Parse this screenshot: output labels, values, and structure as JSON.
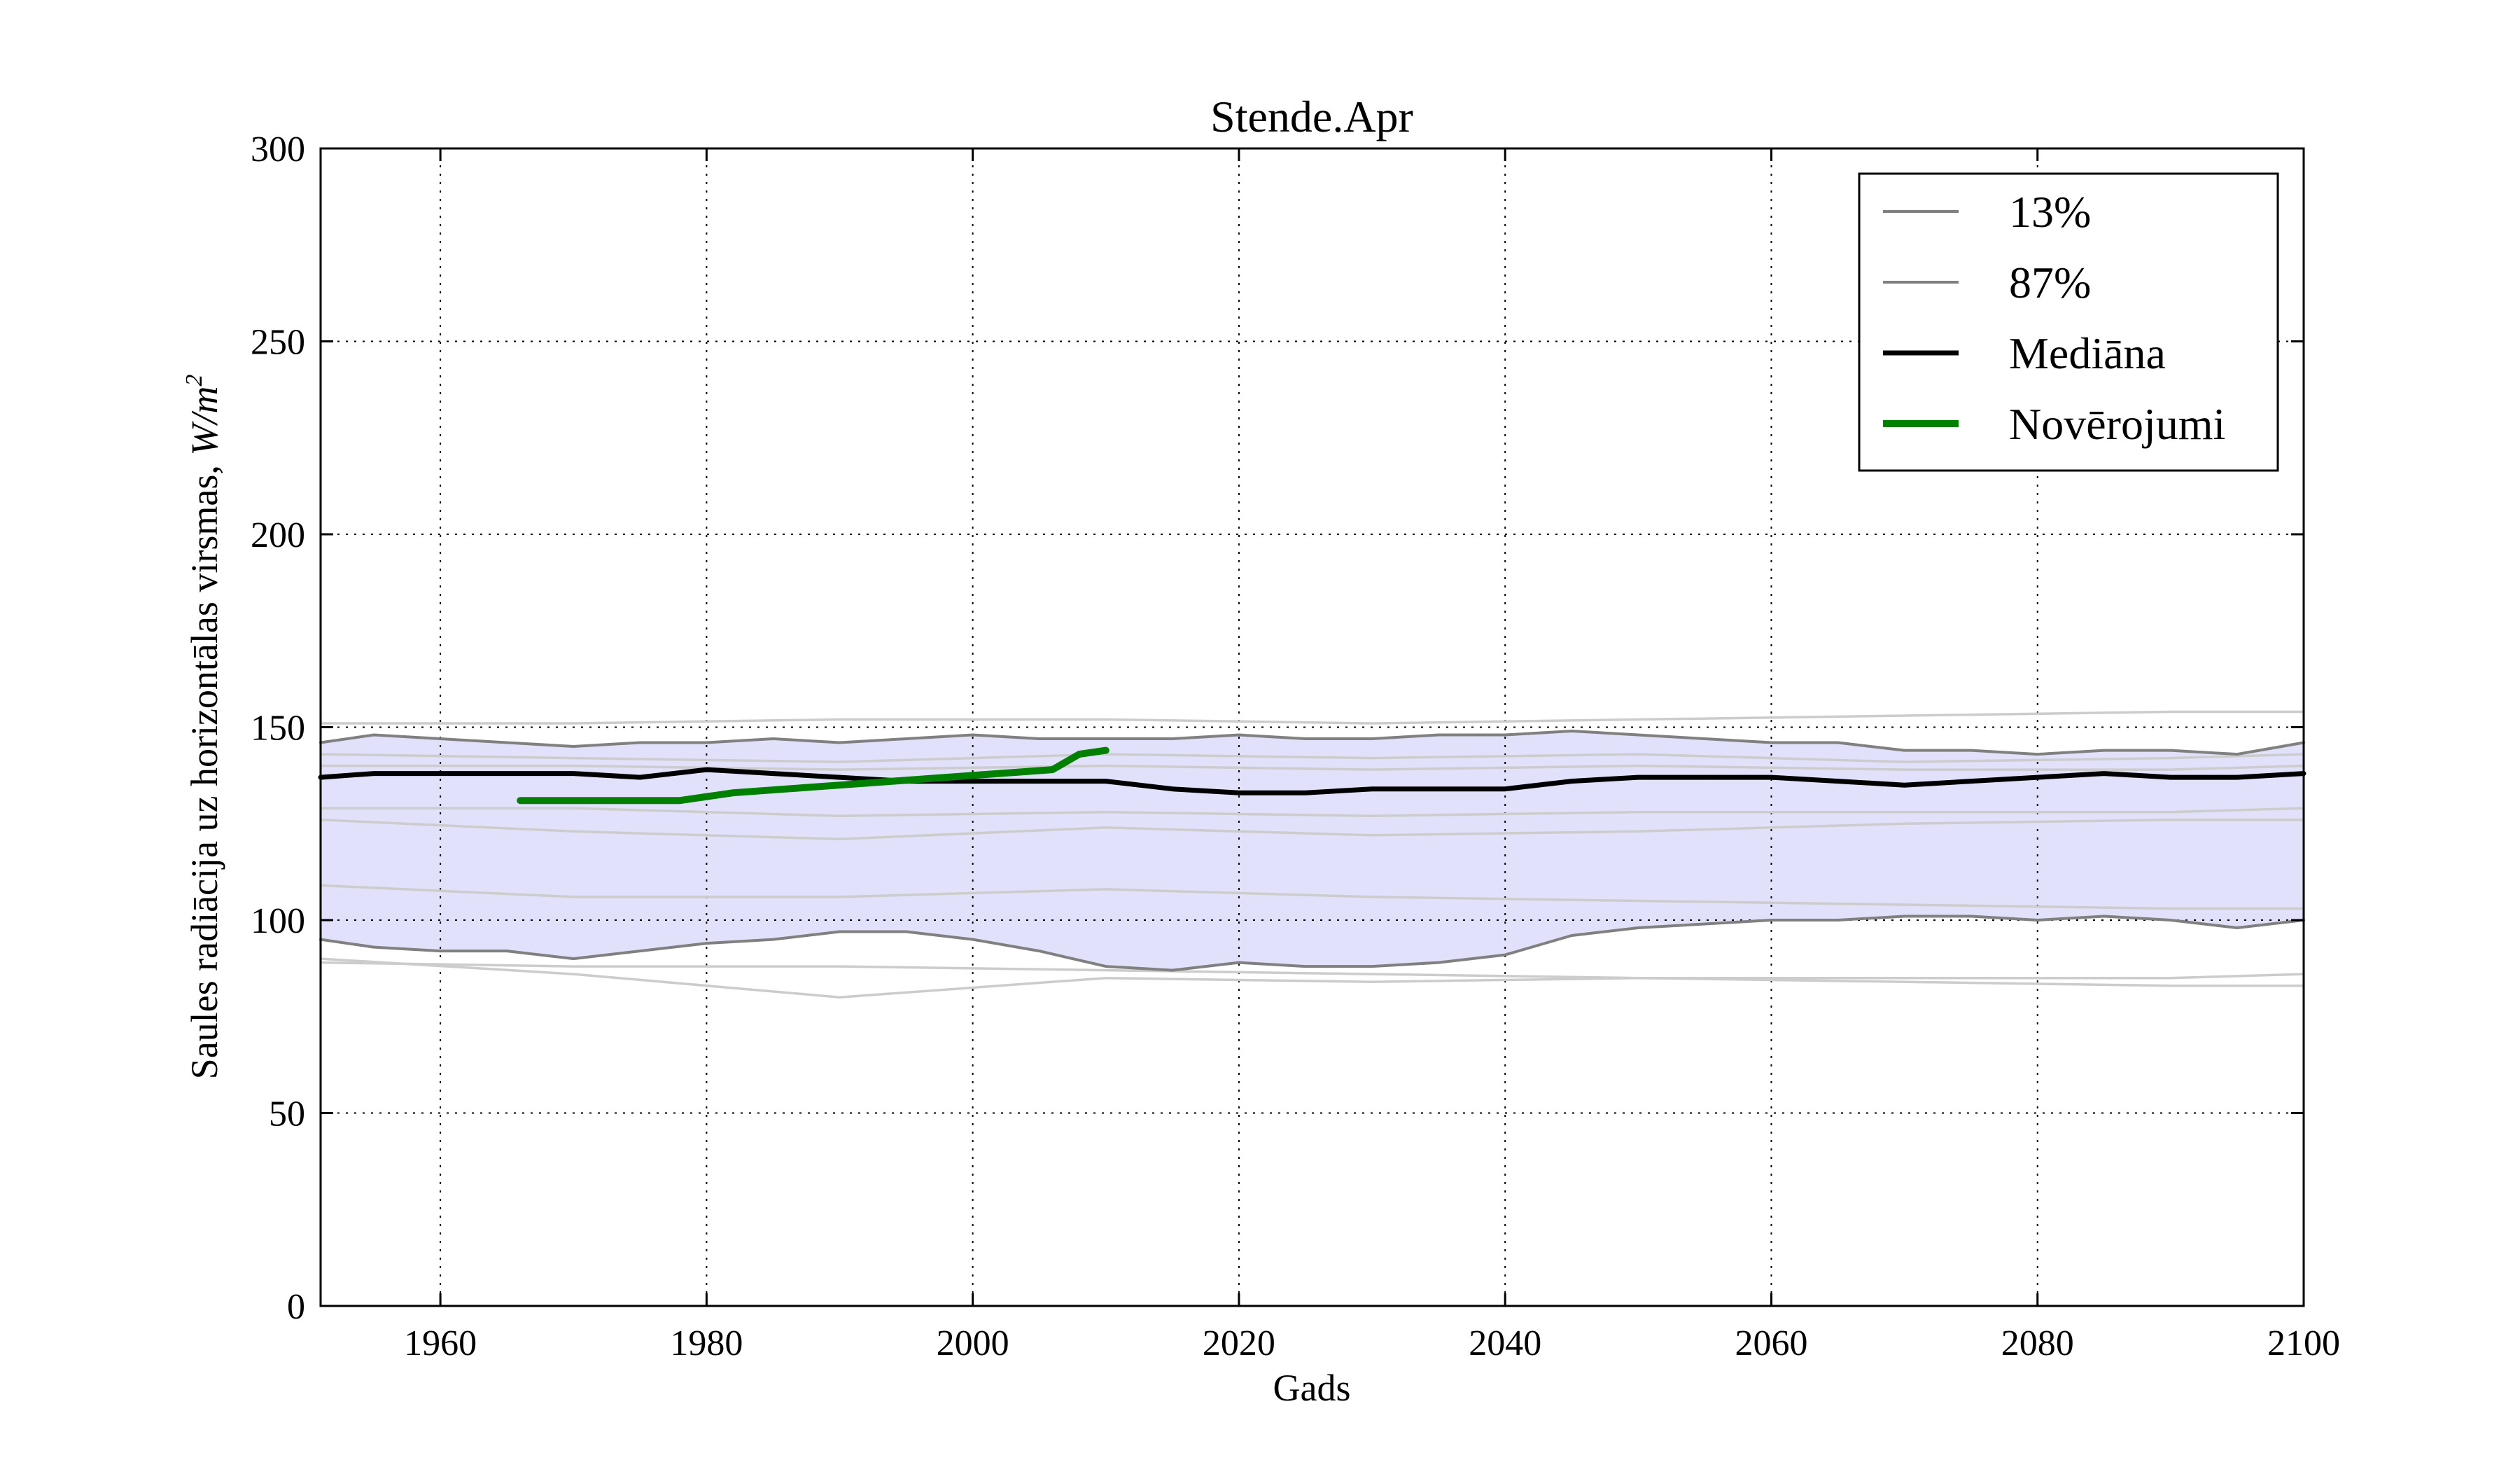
{
  "chart_data": {
    "type": "line",
    "title": "Stende.Apr",
    "xlabel": "Gads",
    "ylabel": "Saules radiācija uz horizontālas virsmas,",
    "ylabel_unit_base": "W/m",
    "ylabel_unit_exp": "2",
    "xlim": [
      1951,
      2100
    ],
    "ylim": [
      0,
      300
    ],
    "x_ticks": [
      1960,
      1980,
      2000,
      2020,
      2040,
      2060,
      2080,
      2100
    ],
    "x_tick_labels": [
      "1960",
      "1980",
      "2000",
      "2020",
      "2040",
      "2060",
      "2080",
      "2100"
    ],
    "y_ticks": [
      0,
      50,
      100,
      150,
      200,
      250,
      300
    ],
    "y_tick_labels": [
      "0",
      "50",
      "100",
      "150",
      "200",
      "250",
      "300"
    ],
    "grid": true,
    "legend_position": "top-right",
    "band": {
      "fill_color": "#e1e1fb",
      "lower_series": "13%",
      "upper_series": "87%"
    },
    "series": [
      {
        "name": "13%",
        "color": "#808080",
        "x": [
          1951,
          1955,
          1960,
          1965,
          1970,
          1975,
          1980,
          1985,
          1990,
          1995,
          2000,
          2005,
          2010,
          2015,
          2020,
          2025,
          2030,
          2035,
          2040,
          2045,
          2050,
          2055,
          2060,
          2065,
          2070,
          2075,
          2080,
          2085,
          2090,
          2095,
          2100
        ],
        "values": [
          95,
          93,
          92,
          92,
          90,
          92,
          94,
          95,
          97,
          97,
          95,
          92,
          88,
          87,
          89,
          88,
          88,
          89,
          91,
          96,
          98,
          99,
          100,
          100,
          101,
          101,
          100,
          101,
          100,
          98,
          100
        ]
      },
      {
        "name": "87%",
        "color": "#808080",
        "x": [
          1951,
          1955,
          1960,
          1965,
          1970,
          1975,
          1980,
          1985,
          1990,
          1995,
          2000,
          2005,
          2010,
          2015,
          2020,
          2025,
          2030,
          2035,
          2040,
          2045,
          2050,
          2055,
          2060,
          2065,
          2070,
          2075,
          2080,
          2085,
          2090,
          2095,
          2100
        ],
        "values": [
          146,
          148,
          147,
          146,
          145,
          146,
          146,
          147,
          146,
          147,
          148,
          147,
          147,
          147,
          148,
          147,
          147,
          148,
          148,
          149,
          148,
          147,
          146,
          146,
          144,
          144,
          143,
          144,
          144,
          143,
          146
        ]
      },
      {
        "name": "Mediāna",
        "color": "#000000",
        "x": [
          1951,
          1955,
          1960,
          1965,
          1970,
          1975,
          1980,
          1985,
          1990,
          1995,
          2000,
          2005,
          2010,
          2015,
          2020,
          2025,
          2030,
          2035,
          2040,
          2045,
          2050,
          2055,
          2060,
          2065,
          2070,
          2075,
          2080,
          2085,
          2090,
          2095,
          2100
        ],
        "values": [
          137,
          138,
          138,
          138,
          138,
          137,
          139,
          138,
          137,
          136,
          136,
          136,
          136,
          134,
          133,
          133,
          134,
          134,
          134,
          136,
          137,
          137,
          137,
          136,
          135,
          136,
          137,
          138,
          137,
          137,
          138
        ]
      },
      {
        "name": "Novērojumi",
        "color": "#008000",
        "x": [
          1966,
          1970,
          1974,
          1978,
          1982,
          1986,
          1990,
          1994,
          1998,
          2002,
          2006,
          2008,
          2010
        ],
        "values": [
          131,
          131,
          131,
          131,
          133,
          134,
          135,
          136,
          137,
          138,
          139,
          143,
          144
        ]
      }
    ],
    "ensemble_members": [
      {
        "color": "#cccccc",
        "x": [
          1951,
          1970,
          1990,
          2010,
          2030,
          2050,
          2070,
          2090,
          2100
        ],
        "values": [
          151,
          151,
          152,
          152,
          151,
          152,
          153,
          154,
          154
        ]
      },
      {
        "color": "#cccccc",
        "x": [
          1951,
          1970,
          1990,
          2010,
          2030,
          2050,
          2070,
          2090,
          2100
        ],
        "values": [
          143,
          142,
          141,
          143,
          142,
          143,
          141,
          142,
          143
        ]
      },
      {
        "color": "#cccccc",
        "x": [
          1951,
          1970,
          1990,
          2010,
          2030,
          2050,
          2070,
          2090,
          2100
        ],
        "values": [
          140,
          140,
          139,
          140,
          139,
          140,
          139,
          139,
          140
        ]
      },
      {
        "color": "#cccccc",
        "x": [
          1951,
          1970,
          1990,
          2010,
          2030,
          2050,
          2070,
          2090,
          2100
        ],
        "values": [
          129,
          129,
          127,
          128,
          127,
          128,
          128,
          128,
          129
        ]
      },
      {
        "color": "#cccccc",
        "x": [
          1951,
          1970,
          1990,
          2010,
          2030,
          2050,
          2070,
          2090,
          2100
        ],
        "values": [
          126,
          123,
          121,
          124,
          122,
          123,
          125,
          126,
          126
        ]
      },
      {
        "color": "#cccccc",
        "x": [
          1951,
          1970,
          1990,
          2010,
          2030,
          2050,
          2070,
          2090,
          2100
        ],
        "values": [
          109,
          106,
          106,
          108,
          106,
          105,
          104,
          103,
          103
        ]
      },
      {
        "color": "#cccccc",
        "x": [
          1951,
          1970,
          1990,
          2010,
          2030,
          2050,
          2070,
          2090,
          2100
        ],
        "values": [
          90,
          86,
          80,
          85,
          84,
          85,
          84,
          83,
          83
        ]
      },
      {
        "color": "#cccccc",
        "x": [
          1951,
          1970,
          1990,
          2010,
          2030,
          2050,
          2070,
          2090,
          2100
        ],
        "values": [
          89,
          88,
          88,
          87,
          86,
          85,
          85,
          85,
          86
        ]
      }
    ]
  }
}
